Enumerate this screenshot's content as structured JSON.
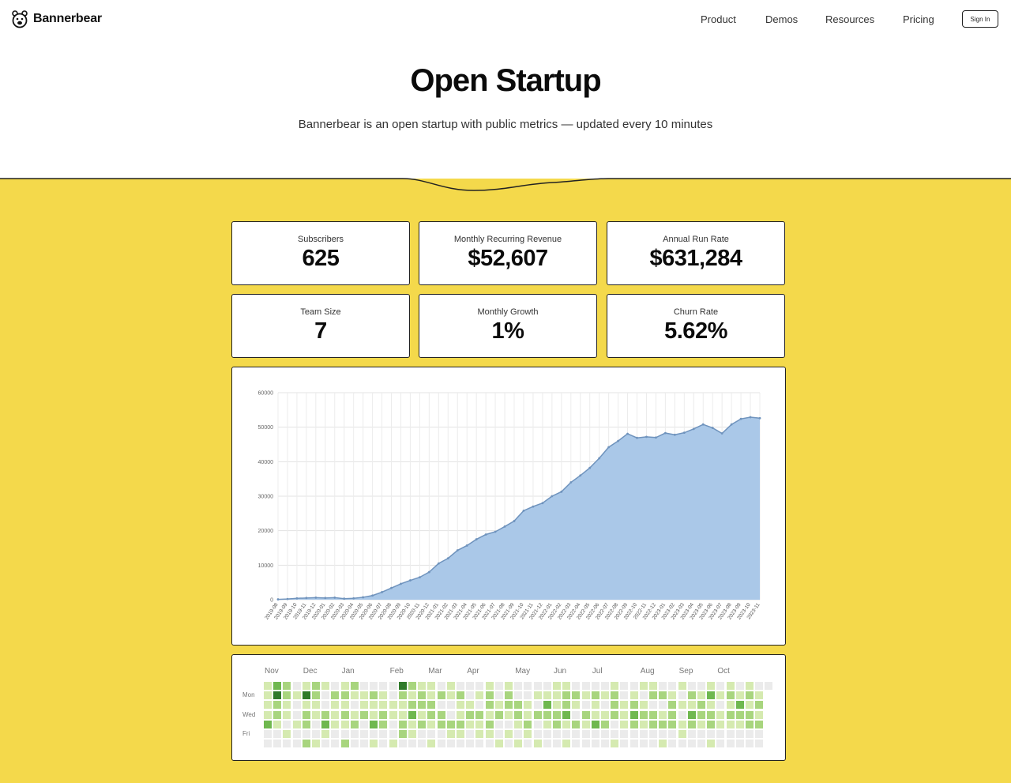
{
  "nav": {
    "brand": "Bannerbear",
    "links": [
      "Product",
      "Demos",
      "Resources",
      "Pricing"
    ],
    "signin": "Sign In"
  },
  "hero": {
    "title": "Open Startup",
    "subtitle": "Bannerbear is an open startup with public metrics — updated every 10 minutes"
  },
  "colors": {
    "accent": "#f4d94b",
    "chart_fill": "#aac8e8",
    "chart_line": "#6f93bd",
    "heat": [
      "#ebebeb",
      "#d5eab0",
      "#a8d57e",
      "#6fb84f",
      "#2f7a2a"
    ]
  },
  "stats": [
    {
      "label": "Subscribers",
      "value": "625"
    },
    {
      "label": "Monthly Recurring Revenue",
      "value": "$52,607"
    },
    {
      "label": "Annual Run Rate",
      "value": "$631,284"
    },
    {
      "label": "Team Size",
      "value": "7"
    },
    {
      "label": "Monthly Growth",
      "value": "1%"
    },
    {
      "label": "Churn Rate",
      "value": "5.62%"
    }
  ],
  "chart_data": {
    "type": "area",
    "title": "",
    "xlabel": "",
    "ylabel": "",
    "ylim": [
      0,
      60000
    ],
    "yticks": [
      0,
      10000,
      20000,
      30000,
      40000,
      50000,
      60000
    ],
    "grid": true,
    "x": [
      "2019-08",
      "2019-09",
      "2019-10",
      "2019-11",
      "2019-12",
      "2020-01",
      "2020-02",
      "2020-03",
      "2020-04",
      "2020-05",
      "2020-06",
      "2020-07",
      "2020-08",
      "2020-09",
      "2020-10",
      "2020-11",
      "2020-12",
      "2021-01",
      "2021-02",
      "2021-03",
      "2021-04",
      "2021-05",
      "2021-06",
      "2021-07",
      "2021-08",
      "2021-09",
      "2021-10",
      "2021-11",
      "2021-12",
      "2022-01",
      "2022-02",
      "2022-03",
      "2022-04",
      "2022-05",
      "2022-06",
      "2022-07",
      "2022-08",
      "2022-09",
      "2022-10",
      "2022-11",
      "2022-12",
      "2023-01",
      "2023-02",
      "2023-03",
      "2023-04",
      "2023-05",
      "2023-06",
      "2023-07",
      "2023-08",
      "2023-09",
      "2023-10",
      "2023-11"
    ],
    "series": [
      {
        "values": [
          100,
          200,
          400,
          500,
          600,
          500,
          600,
          300,
          400,
          700,
          1200,
          2200,
          3400,
          4600,
          5600,
          6500,
          8000,
          10500,
          12000,
          14300,
          15700,
          17500,
          18900,
          19700,
          21200,
          22800,
          25800,
          27000,
          28000,
          30000,
          31300,
          34000,
          36000,
          38200,
          41000,
          44200,
          46000,
          48100,
          46900,
          47200,
          47000,
          48300,
          47800,
          48400,
          49500,
          50800,
          49800,
          48200,
          50800,
          52400,
          52900,
          52607
        ]
      }
    ]
  },
  "heatmap": {
    "months": [
      "Nov",
      "Dec",
      "Jan",
      "Feb",
      "Mar",
      "Apr",
      "May",
      "Jun",
      "Jul",
      "Aug",
      "Sep",
      "Oct"
    ],
    "days": [
      "Mon",
      "Wed",
      "Fri"
    ],
    "weeks": 53,
    "levels": [
      [
        1,
        1,
        1,
        1,
        3,
        0,
        0
      ],
      [
        3,
        4,
        2,
        2,
        1,
        0,
        0
      ],
      [
        2,
        2,
        1,
        1,
        0,
        1,
        0
      ],
      [
        0,
        1,
        0,
        0,
        1,
        0,
        0
      ],
      [
        1,
        4,
        1,
        2,
        2,
        0,
        2
      ],
      [
        2,
        2,
        1,
        1,
        0,
        0,
        1
      ],
      [
        1,
        0,
        0,
        2,
        3,
        1,
        0
      ],
      [
        0,
        2,
        1,
        1,
        1,
        0,
        0
      ],
      [
        1,
        2,
        1,
        2,
        1,
        0,
        2
      ],
      [
        2,
        1,
        0,
        1,
        2,
        0,
        0
      ],
      [
        0,
        1,
        1,
        2,
        0,
        0,
        0
      ],
      [
        0,
        2,
        1,
        1,
        3,
        0,
        1
      ],
      [
        0,
        1,
        1,
        2,
        2,
        0,
        0
      ],
      [
        0,
        0,
        1,
        1,
        0,
        0,
        1
      ],
      [
        4,
        2,
        1,
        1,
        2,
        2,
        0
      ],
      [
        2,
        1,
        2,
        3,
        1,
        1,
        0
      ],
      [
        1,
        2,
        2,
        1,
        2,
        0,
        0
      ],
      [
        1,
        1,
        2,
        2,
        1,
        0,
        1
      ],
      [
        0,
        2,
        0,
        2,
        2,
        0,
        0
      ],
      [
        1,
        1,
        0,
        0,
        2,
        1,
        0
      ],
      [
        0,
        2,
        1,
        1,
        2,
        1,
        0
      ],
      [
        0,
        0,
        1,
        2,
        1,
        0,
        0
      ],
      [
        0,
        1,
        0,
        2,
        1,
        1,
        0
      ],
      [
        1,
        2,
        2,
        1,
        2,
        1,
        0
      ],
      [
        0,
        0,
        1,
        2,
        0,
        0,
        1
      ],
      [
        1,
        2,
        2,
        1,
        0,
        1,
        0
      ],
      [
        0,
        0,
        2,
        2,
        1,
        0,
        1
      ],
      [
        0,
        0,
        1,
        1,
        2,
        1,
        0
      ],
      [
        0,
        1,
        0,
        2,
        0,
        0,
        1
      ],
      [
        0,
        1,
        3,
        2,
        1,
        0,
        0
      ],
      [
        1,
        1,
        1,
        2,
        2,
        0,
        0
      ],
      [
        1,
        2,
        2,
        3,
        1,
        0,
        1
      ],
      [
        0,
        2,
        1,
        0,
        2,
        0,
        0
      ],
      [
        0,
        1,
        0,
        2,
        1,
        0,
        0
      ],
      [
        0,
        2,
        1,
        1,
        3,
        0,
        0
      ],
      [
        0,
        1,
        0,
        1,
        2,
        0,
        0
      ],
      [
        1,
        2,
        2,
        2,
        0,
        0,
        1
      ],
      [
        0,
        0,
        1,
        1,
        1,
        0,
        0
      ],
      [
        0,
        1,
        2,
        3,
        2,
        0,
        0
      ],
      [
        1,
        0,
        1,
        2,
        1,
        0,
        0
      ],
      [
        1,
        2,
        0,
        2,
        2,
        0,
        0
      ],
      [
        0,
        2,
        0,
        1,
        2,
        0,
        1
      ],
      [
        0,
        1,
        2,
        2,
        2,
        0,
        0
      ],
      [
        1,
        0,
        1,
        0,
        1,
        1,
        0
      ],
      [
        0,
        2,
        1,
        3,
        2,
        0,
        0
      ],
      [
        0,
        1,
        2,
        2,
        1,
        0,
        0
      ],
      [
        1,
        3,
        1,
        2,
        2,
        0,
        1
      ],
      [
        0,
        1,
        0,
        1,
        1,
        0,
        0
      ],
      [
        1,
        2,
        1,
        2,
        1,
        0,
        0
      ],
      [
        0,
        1,
        3,
        2,
        1,
        0,
        0
      ],
      [
        1,
        2,
        1,
        2,
        2,
        0,
        0
      ],
      [
        0,
        1,
        2,
        1,
        2,
        0,
        0
      ],
      [
        0,
        0,
        0,
        0,
        0,
        0,
        0
      ]
    ]
  }
}
